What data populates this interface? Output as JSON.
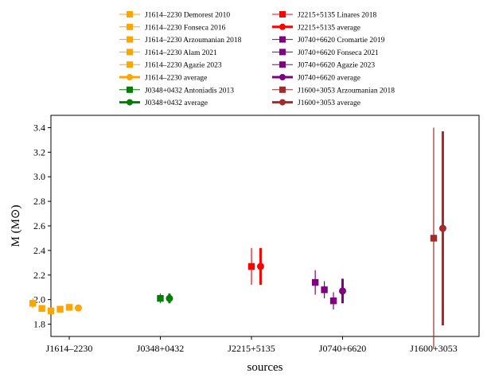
{
  "chart_data": {
    "type": "scatter",
    "title": "",
    "xlabel": "sources",
    "ylabel": "M (M⊙)",
    "ylim": [
      1.7,
      3.5
    ],
    "yticks": [
      1.8,
      2.0,
      2.2,
      2.4,
      2.6,
      2.8,
      3.0,
      3.2,
      3.4
    ],
    "categories": [
      "J1614–2230",
      "J0348+0432",
      "J2215+5135",
      "J0740+6620",
      "J1600+3053"
    ],
    "legend_position": "top-center (outside plot), 2 columns",
    "grid": false,
    "series": [
      {
        "name": "J1614–2230 Demorest 2010",
        "color": "#FFA500",
        "marker": "square",
        "kind": "measurement",
        "category": 0,
        "offset": -0.4,
        "y": 1.97,
        "err": 0.04
      },
      {
        "name": "J1614–2230 Fonseca 2016",
        "color": "#FFA500",
        "marker": "square",
        "kind": "measurement",
        "category": 0,
        "offset": -0.3,
        "y": 1.928,
        "err": 0.017
      },
      {
        "name": "J1614–2230 Arzoumanian 2018",
        "color": "#FFA500",
        "marker": "square",
        "kind": "measurement",
        "category": 0,
        "offset": -0.2,
        "y": 1.908,
        "err": 0.016
      },
      {
        "name": "J1614–2230 Alam 2021",
        "color": "#FFA500",
        "marker": "square",
        "kind": "measurement",
        "category": 0,
        "offset": -0.1,
        "y": 1.922,
        "err": 0.015
      },
      {
        "name": "J1614–2230 Agazie 2023",
        "color": "#FFA500",
        "marker": "square",
        "kind": "measurement",
        "category": 0,
        "offset": 0.0,
        "y": 1.937,
        "err": 0.014
      },
      {
        "name": "J1614–2230 average",
        "color": "#FFA500",
        "marker": "circle",
        "kind": "average",
        "category": 0,
        "offset": 0.1,
        "y": 1.932,
        "err": 0.02
      },
      {
        "name": "J2215+5135 Linares 2018",
        "color": "#FF0000",
        "marker": "square",
        "kind": "measurement",
        "category": 2,
        "offset": 0.0,
        "y": 2.27,
        "err": 0.15
      },
      {
        "name": "J2215+5135 average",
        "color": "#FF0000",
        "marker": "circle",
        "kind": "average",
        "category": 2,
        "offset": 0.1,
        "y": 2.27,
        "err": 0.15
      },
      {
        "name": "J0740+6620 Cromartie 2019",
        "color": "#800080",
        "marker": "square",
        "kind": "measurement",
        "category": 3,
        "offset": -0.3,
        "y": 2.14,
        "err": 0.1
      },
      {
        "name": "J0740+6620 Fonseca 2021",
        "color": "#800080",
        "marker": "square",
        "kind": "measurement",
        "category": 3,
        "offset": -0.2,
        "y": 2.08,
        "err": 0.07
      },
      {
        "name": "J0740+6620 Agazie 2023",
        "color": "#800080",
        "marker": "square",
        "kind": "measurement",
        "category": 3,
        "offset": -0.1,
        "y": 1.99,
        "err": 0.07
      },
      {
        "name": "J0740+6620 average",
        "color": "#800080",
        "marker": "circle",
        "kind": "average",
        "category": 3,
        "offset": 0.0,
        "y": 2.07,
        "err": 0.1
      },
      {
        "name": "J0348+0432 Antoniadis 2013",
        "color": "#008000",
        "marker": "square",
        "kind": "measurement",
        "category": 1,
        "offset": 0.0,
        "y": 2.01,
        "err": 0.04
      },
      {
        "name": "J0348+0432 average",
        "color": "#008000",
        "marker": "circle",
        "kind": "average",
        "category": 1,
        "offset": 0.1,
        "y": 2.01,
        "err": 0.04
      },
      {
        "name": "J1600+3053 Arzoumanian 2018",
        "color": "#A52A2A",
        "marker": "square",
        "kind": "measurement",
        "category": 4,
        "offset": 0.0,
        "y": 2.5,
        "err": 0.9
      },
      {
        "name": "J1600+3053 average",
        "color": "#A52A2A",
        "marker": "circle",
        "kind": "average",
        "category": 4,
        "offset": 0.1,
        "y": 2.58,
        "err": 0.79
      }
    ],
    "legend_order": [
      "J1614–2230 Demorest 2010",
      "J1614–2230 Fonseca 2016",
      "J1614–2230 Arzoumanian 2018",
      "J1614–2230 Alam 2021",
      "J1614–2230 Agazie 2023",
      "J1614–2230 average",
      "J0348+0432 Antoniadis 2013",
      "J0348+0432 average",
      "J2215+5135 Linares 2018",
      "J2215+5135 average",
      "J0740+6620 Cromartie 2019",
      "J0740+6620 Fonseca 2021",
      "J0740+6620 Agazie 2023",
      "J0740+6620 average",
      "J1600+3053 Arzoumanian 2018",
      "J1600+3053 average"
    ]
  }
}
